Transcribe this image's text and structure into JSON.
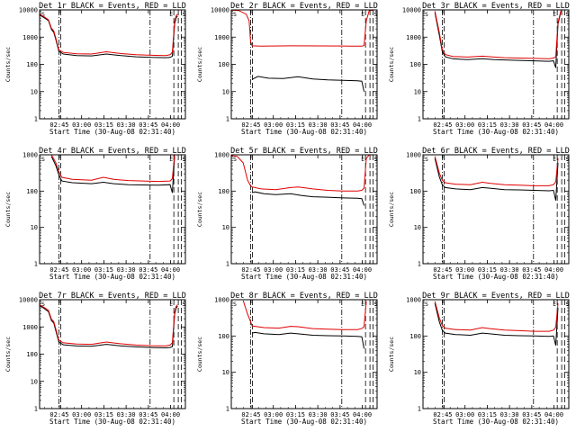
{
  "chart_data": {
    "type": "line",
    "layout": "3x3",
    "legend_colors": {
      "events": "#000000",
      "lld": "#e00000"
    },
    "y_axis": {
      "scale": "log",
      "ylabel": "Counts/sec"
    },
    "x_axis": {
      "xlabel": "Start Time (30-Aug-08 02:31:40)",
      "tick_labels": [
        "02:45",
        "03:00",
        "03:15",
        "03:30",
        "03:45",
        "04:00"
      ],
      "tick_minutes": [
        13.33,
        28.33,
        43.33,
        58.33,
        73.33,
        88.33
      ],
      "range_minutes": [
        0,
        98.3
      ]
    },
    "marker_labels": {
      "start": "S",
      "end_left": "E",
      "end_right": "S"
    },
    "vertical_markers_minutes": {
      "dashdot": [
        13.0,
        74.5
      ],
      "dashed": [
        14.2,
        90.5,
        93.5,
        95.5
      ]
    },
    "panels": [
      {
        "title": "Det 1r BLACK = Events, RED = LLD",
        "yticks": [
          "1",
          "10",
          "100",
          "1000",
          "10000"
        ],
        "ylim": [
          1,
          10000
        ],
        "series": [
          {
            "name": "Events",
            "color": "#000000",
            "x": [
              0,
              3,
              6,
              8,
              9.5,
              11,
              13,
              16,
              25,
              35,
              45,
              55,
              65,
              75,
              85,
              88,
              89.5,
              91,
              92,
              93
            ],
            "y": [
              6500,
              5200,
              4000,
              1900,
              1500,
              800,
              300,
              240,
              210,
              205,
              240,
              210,
              190,
              180,
              175,
              180,
              200,
              3000,
              5000,
              6000
            ]
          },
          {
            "name": "LLD",
            "color": "#e00000",
            "x": [
              0,
              3,
              6,
              8,
              9.5,
              11,
              13,
              16,
              25,
              35,
              45,
              55,
              65,
              75,
              85,
              88,
              89.5,
              91,
              92,
              93
            ],
            "y": [
              7000,
              5600,
              4300,
              2100,
              1700,
              900,
              340,
              275,
              245,
              240,
              290,
              250,
              225,
              215,
              210,
              225,
              280,
              3600,
              6000,
              7000
            ]
          }
        ]
      },
      {
        "title": "Det 2r BLACK = Events, RED = LLD",
        "yticks": [
          "1",
          "10",
          "100",
          "1000",
          "10000"
        ],
        "ylim": [
          1,
          10000
        ],
        "series": [
          {
            "name": "Events",
            "color": "#000000",
            "x": [
              14,
              18,
              25,
              35,
              45,
              55,
              65,
              75,
              85,
              88,
              89.5
            ],
            "y": [
              28,
              36,
              31,
              30,
              35,
              29,
              27,
              26,
              25,
              24,
              10
            ]
          },
          {
            "name": "LLD",
            "color": "#e00000",
            "x": [
              0,
              5,
              10,
              12,
              13,
              14,
              20,
              40,
              60,
              80,
              88,
              89.5,
              91,
              93,
              96
            ],
            "y": [
              9800,
              9500,
              7000,
              4000,
              700,
              480,
              470,
              480,
              475,
              470,
              470,
              490,
              4000,
              9500,
              9800
            ]
          }
        ]
      },
      {
        "title": "Det 3r BLACK = Events, RED = LLD",
        "yticks": [
          "1",
          "10",
          "100",
          "1000",
          "10000"
        ],
        "ylim": [
          1,
          10000
        ],
        "series": [
          {
            "name": "Events",
            "color": "#000000",
            "x": [
              8,
              11,
              13,
              15,
              20,
              30,
              40,
              48,
              55,
              65,
              75,
              85,
              88,
              89.5,
              91,
              93
            ],
            "y": [
              8000,
              1200,
              300,
              190,
              160,
              150,
              160,
              150,
              145,
              140,
              135,
              130,
              135,
              75,
              3000,
              9000
            ]
          },
          {
            "name": "LLD",
            "color": "#e00000",
            "x": [
              8,
              11,
              13,
              15,
              20,
              30,
              40,
              48,
              55,
              65,
              75,
              85,
              88,
              89.5,
              91,
              93
            ],
            "y": [
              9000,
              1500,
              360,
              230,
              195,
              185,
              200,
              185,
              175,
              170,
              165,
              160,
              170,
              190,
              3500,
              9500
            ]
          }
        ]
      },
      {
        "title": "Det 4r BLACK = Events, RED = LLD",
        "yticks": [
          "1",
          "10",
          "100",
          "1000"
        ],
        "ylim": [
          1,
          1000
        ],
        "series": [
          {
            "name": "Events",
            "color": "#000000",
            "x": [
              8,
              11,
              13,
              15,
              22,
              35,
              43,
              50,
              60,
              70,
              80,
              88,
              89.5,
              91
            ],
            "y": [
              900,
              500,
              280,
              190,
              170,
              160,
              175,
              160,
              150,
              148,
              145,
              150,
              90,
              900
            ]
          },
          {
            "name": "LLD",
            "color": "#e00000",
            "x": [
              8,
              11,
              13,
              15,
              22,
              35,
              43,
              50,
              60,
              70,
              80,
              88,
              89.5,
              91
            ],
            "y": [
              1000,
              600,
              340,
              240,
              210,
              200,
              240,
              210,
              195,
              190,
              185,
              190,
              220,
              1000
            ]
          }
        ]
      },
      {
        "title": "Det 5r BLACK = Events, RED = LLD",
        "yticks": [
          "1",
          "10",
          "100",
          "1000"
        ],
        "ylim": [
          1,
          1000
        ],
        "series": [
          {
            "name": "Events",
            "color": "#000000",
            "x": [
              14,
              16,
              22,
              30,
              40,
              48,
              55,
              65,
              75,
              85,
              88,
              89.5
            ],
            "y": [
              90,
              95,
              85,
              80,
              85,
              75,
              70,
              68,
              65,
              64,
              62,
              40
            ]
          },
          {
            "name": "LLD",
            "color": "#e00000",
            "x": [
              0,
              4,
              8,
              11,
              13,
              14,
              20,
              30,
              40,
              45,
              55,
              65,
              75,
              85,
              88,
              89.5,
              91,
              93
            ],
            "y": [
              950,
              900,
              600,
              200,
              140,
              130,
              115,
              110,
              125,
              130,
              115,
              105,
              100,
              100,
              105,
              120,
              800,
              1000
            ]
          }
        ]
      },
      {
        "title": "Det 6r BLACK = Events, RED = LLD",
        "yticks": [
          "1",
          "10",
          "100",
          "1000"
        ],
        "ylim": [
          1,
          1000
        ],
        "series": [
          {
            "name": "Events",
            "color": "#000000",
            "x": [
              8,
              11,
              13,
              15,
              22,
              32,
              40,
              45,
              55,
              65,
              75,
              85,
              88,
              89.5,
              91
            ],
            "y": [
              800,
              250,
              150,
              125,
              115,
              110,
              125,
              120,
              110,
              108,
              105,
              102,
              105,
              55,
              600
            ]
          },
          {
            "name": "LLD",
            "color": "#e00000",
            "x": [
              8,
              11,
              13,
              15,
              22,
              32,
              40,
              45,
              55,
              65,
              75,
              85,
              88,
              89.5,
              91
            ],
            "y": [
              900,
              320,
              200,
              170,
              155,
              150,
              175,
              165,
              150,
              145,
              140,
              140,
              150,
              180,
              800
            ]
          }
        ]
      },
      {
        "title": "Det 7r BLACK = Events, RED = LLD",
        "yticks": [
          "1",
          "10",
          "100",
          "1000",
          "10000"
        ],
        "ylim": [
          1,
          10000
        ],
        "series": [
          {
            "name": "Events",
            "color": "#000000",
            "x": [
              0,
              3,
              6,
              8,
              9.5,
              11,
              13,
              16,
              25,
              35,
              45,
              55,
              65,
              75,
              85,
              88,
              89.5,
              91,
              92,
              93
            ],
            "y": [
              6000,
              4800,
              3600,
              1700,
              1400,
              700,
              280,
              220,
              200,
              195,
              230,
              200,
              185,
              175,
              170,
              175,
              190,
              2800,
              4800,
              5800
            ]
          },
          {
            "name": "LLD",
            "color": "#e00000",
            "x": [
              0,
              3,
              6,
              8,
              9.5,
              11,
              13,
              16,
              25,
              35,
              45,
              55,
              65,
              75,
              85,
              88,
              89.5,
              91,
              92,
              93
            ],
            "y": [
              6500,
              5200,
              4000,
              1900,
              1600,
              820,
              320,
              260,
              235,
              230,
              280,
              240,
              215,
              205,
              200,
              215,
              260,
              3300,
              5600,
              6500
            ]
          }
        ]
      },
      {
        "title": "Det 8r BLACK = Events, RED = LLD",
        "yticks": [
          "1",
          "10",
          "100",
          "1000"
        ],
        "ylim": [
          1,
          1000
        ],
        "series": [
          {
            "name": "Events",
            "color": "#000000",
            "x": [
              14,
              16,
              22,
              32,
              40,
              45,
              55,
              65,
              75,
              85,
              88,
              89.5
            ],
            "y": [
              120,
              125,
              115,
              110,
              120,
              115,
              105,
              102,
              100,
              98,
              95,
              45
            ]
          },
          {
            "name": "LLD",
            "color": "#e00000",
            "x": [
              8,
              11,
              13,
              14,
              16,
              22,
              32,
              40,
              45,
              55,
              65,
              75,
              85,
              88,
              89.5,
              91
            ],
            "y": [
              950,
              400,
              250,
              190,
              185,
              170,
              165,
              185,
              180,
              160,
              155,
              150,
              150,
              160,
              180,
              900
            ]
          }
        ]
      },
      {
        "title": "Det 9r BLACK = Events, RED = LLD",
        "yticks": [
          "1",
          "10",
          "100",
          "1000"
        ],
        "ylim": [
          1,
          1000
        ],
        "series": [
          {
            "name": "Events",
            "color": "#000000",
            "x": [
              8,
              11,
              13,
              15,
              22,
              32,
              40,
              45,
              55,
              65,
              75,
              85,
              88,
              89.5,
              91
            ],
            "y": [
              800,
              250,
              145,
              120,
              110,
              105,
              120,
              115,
              105,
              102,
              100,
              98,
              100,
              55,
              600
            ]
          },
          {
            "name": "LLD",
            "color": "#e00000",
            "x": [
              8,
              11,
              13,
              15,
              22,
              32,
              40,
              45,
              55,
              65,
              75,
              85,
              88,
              89.5,
              91
            ],
            "y": [
              900,
              320,
              195,
              165,
              150,
              145,
              170,
              160,
              145,
              140,
              135,
              135,
              145,
              175,
              800
            ]
          }
        ]
      }
    ]
  }
}
